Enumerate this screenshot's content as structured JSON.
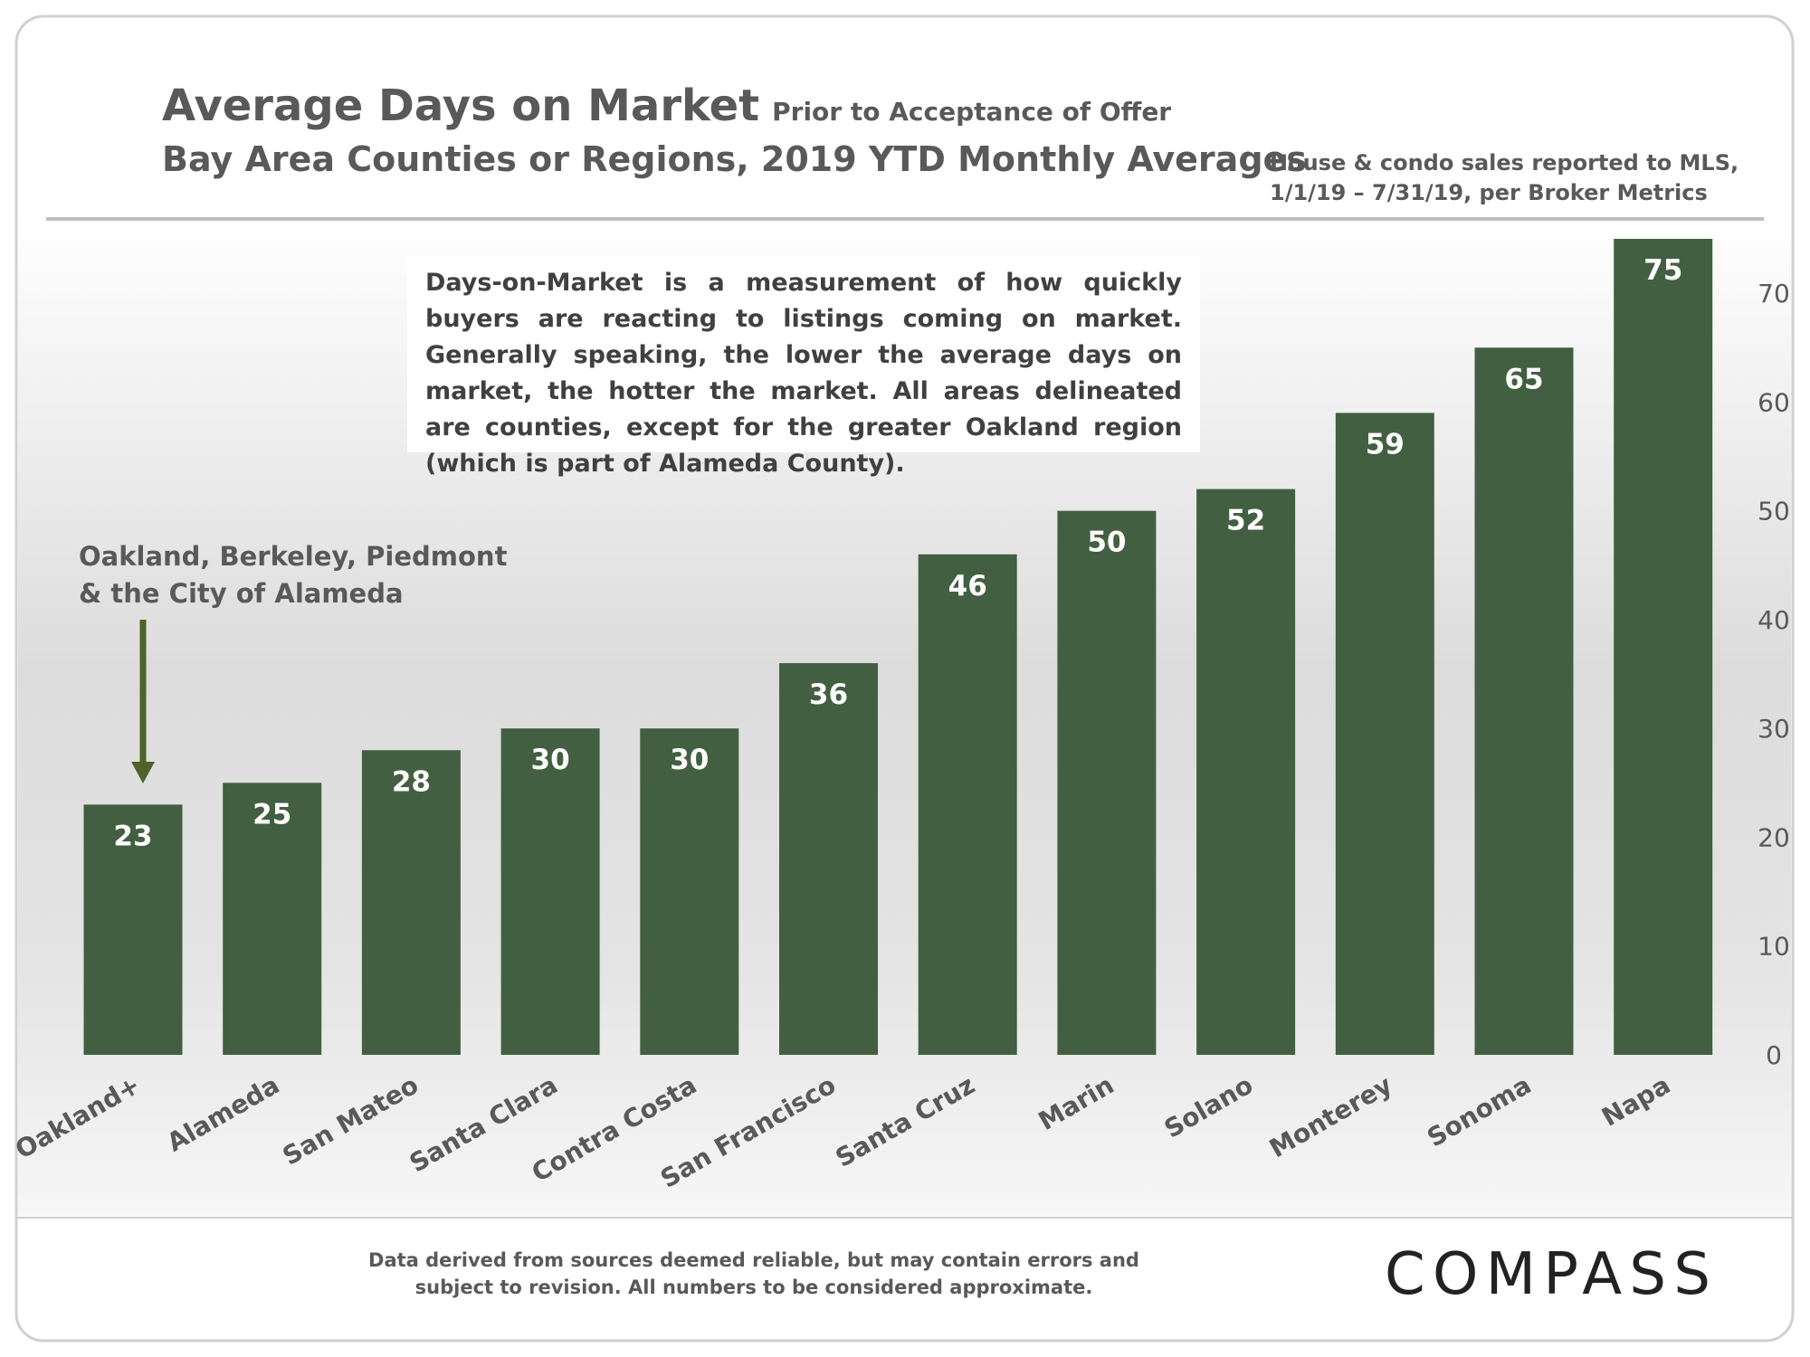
{
  "chart_data": {
    "type": "bar",
    "title": "Average Days on Market",
    "subtitle": "Prior to Acceptance of Offer",
    "heading": "Bay Area Counties or Regions, 2019 YTD Monthly Averages",
    "categories": [
      "Oakland+",
      "Alameda",
      "San Mateo",
      "Santa Clara",
      "Contra Costa",
      "San Francisco",
      "Santa Cruz",
      "Marin",
      "Solano",
      "Monterey",
      "Sonoma",
      "Napa"
    ],
    "values": [
      23,
      25,
      28,
      30,
      30,
      36,
      46,
      50,
      52,
      59,
      65,
      75
    ],
    "color": "#435f41",
    "ylim": [
      0,
      75
    ],
    "yticks": [
      0,
      10,
      20,
      30,
      40,
      50,
      60,
      70
    ],
    "grid": false
  },
  "note": [
    "House & condo sales reported to MLS,",
    "1/1/19 – 7/31/19, per Broker Metrics"
  ],
  "description": "Days-on-Market is a measurement of how quickly buyers are reacting to listings coming on market.  Generally speaking, the lower the average days on market, the hotter the market. All areas delineated are counties, except for the greater Oakland region (which is part of Alameda County).",
  "annotation": [
    "Oakland, Berkeley, Piedmont",
    "& the City of Alameda"
  ],
  "footer": [
    "Data derived from sources deemed reliable, but may contain errors and",
    "subject to revision. All numbers to be considered approximate."
  ],
  "logo": "COMPASS"
}
